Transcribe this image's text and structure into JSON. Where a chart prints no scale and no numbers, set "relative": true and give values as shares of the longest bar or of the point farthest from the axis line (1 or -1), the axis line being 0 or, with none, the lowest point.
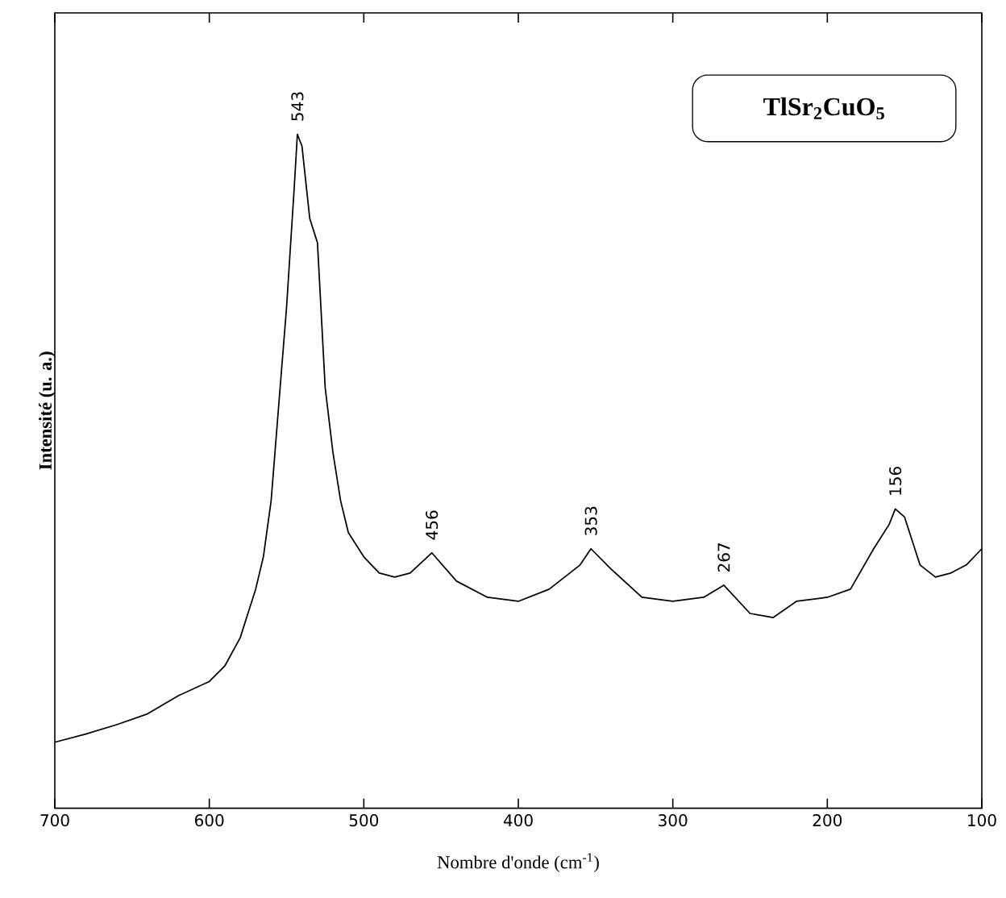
{
  "chart_data": {
    "type": "line",
    "relative": true,
    "xlabel": "Nombre d'onde (cm$^{-1}$)",
    "ylabel": "Intensité (u. a.)",
    "x": [
      700,
      680,
      660,
      640,
      620,
      600,
      590,
      580,
      570,
      565,
      560,
      555,
      550,
      545,
      543,
      540,
      535,
      530,
      525,
      520,
      515,
      510,
      500,
      490,
      480,
      470,
      456,
      440,
      420,
      400,
      380,
      360,
      353,
      340,
      320,
      300,
      280,
      267,
      250,
      235,
      220,
      200,
      185,
      170,
      160,
      156,
      150,
      140,
      130,
      120,
      110,
      100
    ],
    "series": [
      {
        "color": "#000000",
        "values": [
          0.098,
          0.11,
          0.124,
          0.14,
          0.167,
          0.188,
          0.211,
          0.253,
          0.325,
          0.373,
          0.456,
          0.6,
          0.743,
          0.922,
          1.0,
          0.982,
          0.875,
          0.839,
          0.624,
          0.528,
          0.456,
          0.409,
          0.373,
          0.349,
          0.343,
          0.349,
          0.379,
          0.337,
          0.313,
          0.307,
          0.325,
          0.361,
          0.385,
          0.355,
          0.313,
          0.307,
          0.313,
          0.331,
          0.289,
          0.283,
          0.307,
          0.313,
          0.325,
          0.385,
          0.421,
          0.444,
          0.432,
          0.361,
          0.343,
          0.349,
          0.361,
          0.385
        ]
      }
    ],
    "xlim": [
      700,
      100
    ],
    "xticks": [
      700,
      600,
      500,
      400,
      300,
      200,
      100
    ],
    "tick_labels": "x",
    "grid": false,
    "annotations": [
      {
        "text": "543",
        "x": 543,
        "y": 1.0
      },
      {
        "text": "456",
        "x": 456,
        "y": 0.379
      },
      {
        "text": "353",
        "x": 353,
        "y": 0.385
      },
      {
        "text": "267",
        "x": 267,
        "y": 0.331
      },
      {
        "text": "156",
        "x": 156,
        "y": 0.444
      },
      "**TlSr$_{2}$CuO$_{5}$**"
    ]
  }
}
